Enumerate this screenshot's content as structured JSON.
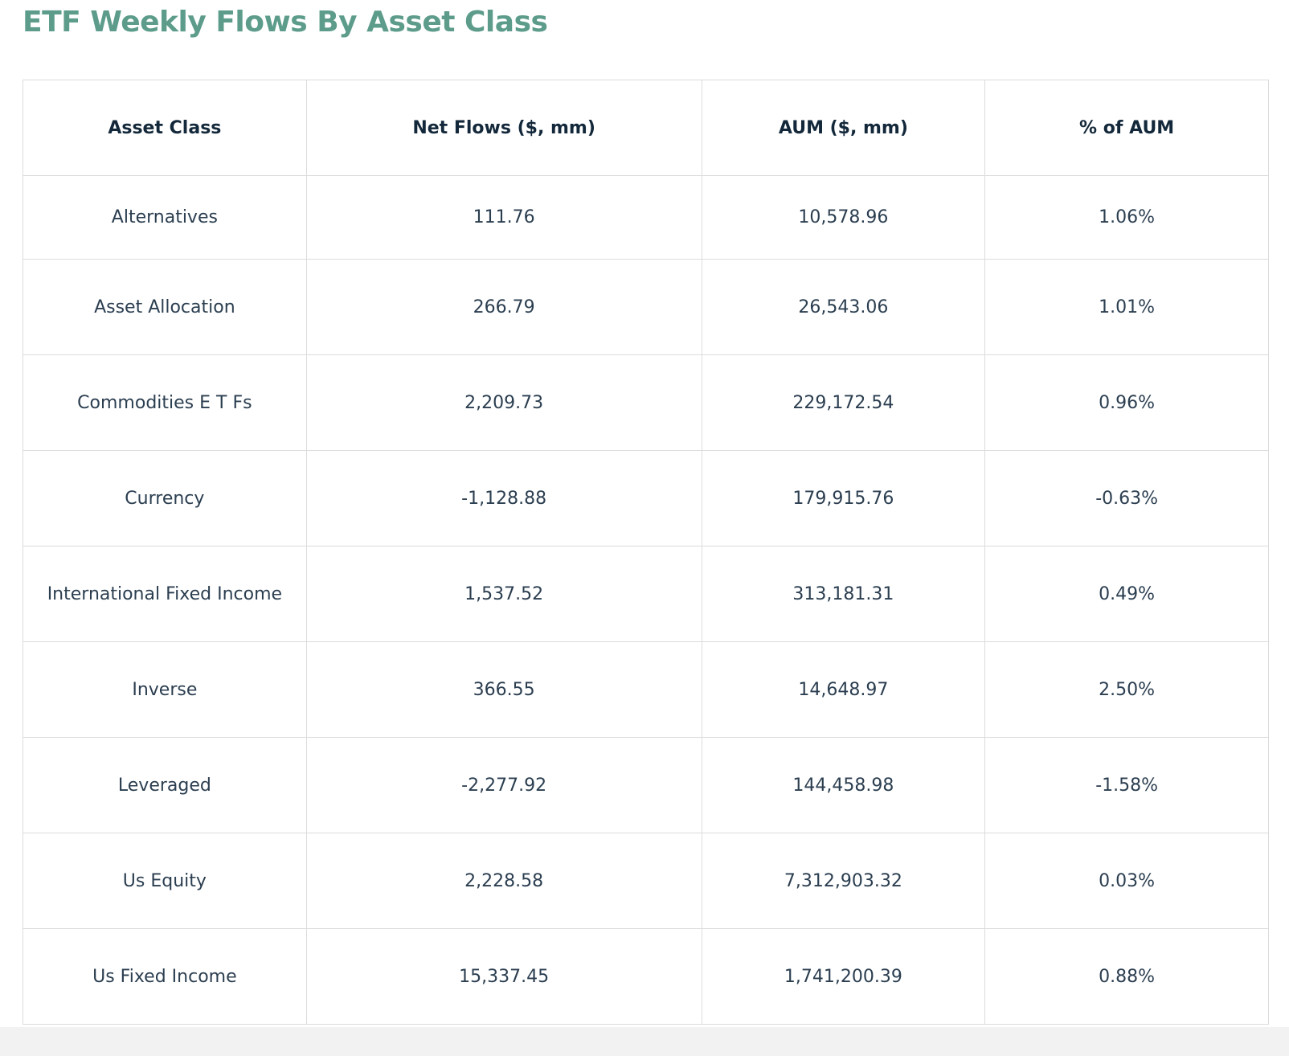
{
  "page": {
    "title": "ETF Weekly Flows By Asset Class"
  },
  "colors": {
    "title": "#5d9c8b",
    "header_text": "#13283a",
    "cell_text": "#2b3e50",
    "border": "#dcdcdc"
  },
  "table": {
    "headers": [
      "Asset Class",
      "Net Flows ($, mm)",
      "AUM ($, mm)",
      "% of AUM"
    ],
    "rows": [
      [
        "Alternatives",
        "111.76",
        "10,578.96",
        "1.06%"
      ],
      [
        "Asset Allocation",
        "266.79",
        "26,543.06",
        "1.01%"
      ],
      [
        "Commodities E T Fs",
        "2,209.73",
        "229,172.54",
        "0.96%"
      ],
      [
        "Currency",
        "-1,128.88",
        "179,915.76",
        "-0.63%"
      ],
      [
        "International Fixed Income",
        "1,537.52",
        "313,181.31",
        "0.49%"
      ],
      [
        "Inverse",
        "366.55",
        "14,648.97",
        "2.50%"
      ],
      [
        "Leveraged",
        "-2,277.92",
        "144,458.98",
        "-1.58%"
      ],
      [
        "Us Equity",
        "2,228.58",
        "7,312,903.32",
        "0.03%"
      ],
      [
        "Us Fixed Income",
        "15,337.45",
        "1,741,200.39",
        "0.88%"
      ]
    ]
  }
}
